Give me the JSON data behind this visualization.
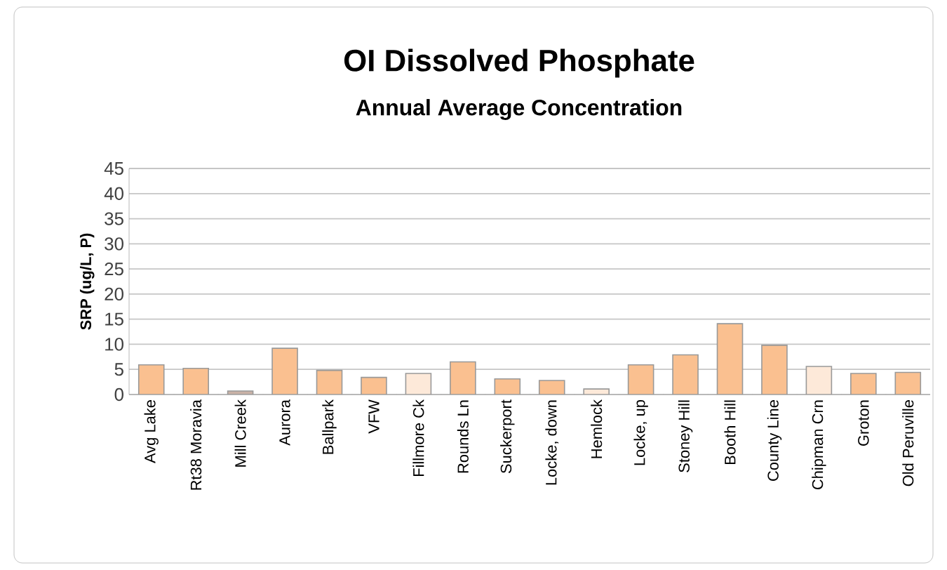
{
  "chart_data": {
    "type": "bar",
    "title": "OI  Dissolved Phosphate",
    "subtitle": "Annual Average Concentration",
    "ylabel": "SRP (ug/L, P)",
    "categories": [
      "Avg Lake",
      "Rt38 Moravia",
      "Mill Creek",
      "Aurora",
      "Ballpark",
      "VFW",
      "Fillmore Ck",
      "Rounds Ln",
      "Suckerport",
      "Locke, down",
      "Hemlock",
      "Locke, up",
      "Stoney Hill",
      "Booth Hill",
      "County Line",
      "Chipman Crn",
      "Groton",
      "Old Peruville"
    ],
    "values": [
      5.9,
      5.2,
      0.7,
      9.2,
      4.8,
      3.4,
      4.2,
      6.5,
      3.1,
      2.8,
      1.1,
      5.9,
      7.9,
      14.1,
      9.8,
      5.6,
      4.2,
      4.4
    ],
    "colors": [
      "#fac090",
      "#fac090",
      "#c9b2a6",
      "#fac090",
      "#fac090",
      "#fac090",
      "#fde9d9",
      "#fac090",
      "#fac090",
      "#fac090",
      "#fde9d9",
      "#fac090",
      "#fac090",
      "#fac090",
      "#fac090",
      "#fde9d9",
      "#fac090",
      "#fac090"
    ],
    "ylim": [
      0,
      45
    ],
    "yticks": [
      0,
      5,
      10,
      15,
      20,
      25,
      30,
      35,
      40,
      45
    ],
    "grid": "y"
  }
}
